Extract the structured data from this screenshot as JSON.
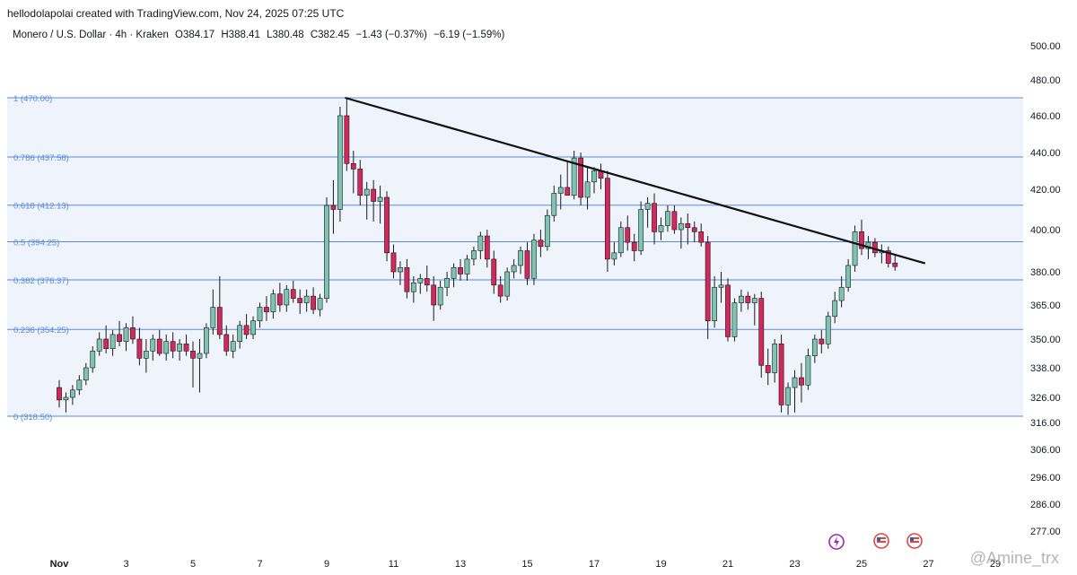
{
  "header": {
    "attribution": "hellodolapolai created with TradingView.com, Nov 24, 2025 07:25 UTC"
  },
  "symbol": {
    "name": "Monero / U.S. Dollar · 4h · Kraken",
    "open": "O384.17",
    "high": "H388.41",
    "low": "L380.48",
    "close": "C382.45",
    "change": "−1.43 (−0.37%)",
    "change2": "−6.19 (−1.59%)"
  },
  "watermark": "@Amine_trx",
  "colors": {
    "up": "#7fc3b3",
    "down": "#d2285a",
    "fib": "#5b8bd6",
    "band": "#eef3fc",
    "trendline": "#111111"
  },
  "chart_data": {
    "type": "candlestick",
    "y_ticks": [
      "500.00",
      "480.00",
      "460.00",
      "440.00",
      "420.00",
      "400.00",
      "380.00",
      "365.00",
      "350.00",
      "338.00",
      "326.00",
      "316.00",
      "306.00",
      "296.00",
      "286.00",
      "277.00"
    ],
    "x_ticks": [
      "Nov",
      "3",
      "5",
      "7",
      "9",
      "11",
      "13",
      "15",
      "17",
      "19",
      "21",
      "23",
      "25",
      "27",
      "29"
    ],
    "fib_levels": [
      {
        "ratio": "1",
        "price": 470.0,
        "label": "1 (470.00)"
      },
      {
        "ratio": "0.786",
        "price": 437.58,
        "label": "0.786 (437.58)"
      },
      {
        "ratio": "0.618",
        "price": 412.13,
        "label": "0.618 (412.13)"
      },
      {
        "ratio": "0.5",
        "price": 394.25,
        "label": "0.5 (394.25)"
      },
      {
        "ratio": "0.382",
        "price": 376.37,
        "label": "0.382 (376.37)"
      },
      {
        "ratio": "0.236",
        "price": 354.25,
        "label": "0.236 (354.25)"
      },
      {
        "ratio": "0",
        "price": 318.5,
        "label": "0 (318.50)"
      }
    ],
    "trendline": [
      {
        "day": 9.55,
        "price": 470.0
      },
      {
        "day": 26.9,
        "price": 384.0
      }
    ],
    "candles": [
      {
        "d": 1.0,
        "o": 330,
        "h": 333,
        "l": 322,
        "c": 325
      },
      {
        "d": 1.2,
        "o": 325,
        "h": 328,
        "l": 320,
        "c": 326
      },
      {
        "d": 1.4,
        "o": 326,
        "h": 331,
        "l": 323,
        "c": 329
      },
      {
        "d": 1.6,
        "o": 329,
        "h": 335,
        "l": 327,
        "c": 333
      },
      {
        "d": 1.8,
        "o": 333,
        "h": 340,
        "l": 331,
        "c": 338
      },
      {
        "d": 2.0,
        "o": 338,
        "h": 347,
        "l": 336,
        "c": 345
      },
      {
        "d": 2.2,
        "o": 345,
        "h": 353,
        "l": 343,
        "c": 350
      },
      {
        "d": 2.4,
        "o": 350,
        "h": 356,
        "l": 344,
        "c": 346
      },
      {
        "d": 2.6,
        "o": 346,
        "h": 354,
        "l": 343,
        "c": 352
      },
      {
        "d": 2.8,
        "o": 352,
        "h": 358,
        "l": 347,
        "c": 349
      },
      {
        "d": 3.0,
        "o": 349,
        "h": 357,
        "l": 345,
        "c": 355
      },
      {
        "d": 3.2,
        "o": 355,
        "h": 360,
        "l": 348,
        "c": 350
      },
      {
        "d": 3.4,
        "o": 350,
        "h": 355,
        "l": 339,
        "c": 342
      },
      {
        "d": 3.6,
        "o": 342,
        "h": 350,
        "l": 336,
        "c": 345
      },
      {
        "d": 3.8,
        "o": 345,
        "h": 352,
        "l": 341,
        "c": 350
      },
      {
        "d": 4.0,
        "o": 350,
        "h": 354,
        "l": 343,
        "c": 344
      },
      {
        "d": 4.2,
        "o": 344,
        "h": 352,
        "l": 341,
        "c": 349
      },
      {
        "d": 4.4,
        "o": 349,
        "h": 353,
        "l": 342,
        "c": 345
      },
      {
        "d": 4.6,
        "o": 345,
        "h": 350,
        "l": 341,
        "c": 348
      },
      {
        "d": 4.8,
        "o": 348,
        "h": 352,
        "l": 343,
        "c": 345
      },
      {
        "d": 5.0,
        "o": 345,
        "h": 349,
        "l": 330,
        "c": 342
      },
      {
        "d": 5.2,
        "o": 342,
        "h": 350,
        "l": 328,
        "c": 344
      },
      {
        "d": 5.4,
        "o": 344,
        "h": 357,
        "l": 342,
        "c": 355
      },
      {
        "d": 5.6,
        "o": 355,
        "h": 372,
        "l": 352,
        "c": 364
      },
      {
        "d": 5.8,
        "o": 364,
        "h": 378,
        "l": 350,
        "c": 352
      },
      {
        "d": 6.0,
        "o": 352,
        "h": 356,
        "l": 343,
        "c": 345
      },
      {
        "d": 6.2,
        "o": 345,
        "h": 352,
        "l": 342,
        "c": 349
      },
      {
        "d": 6.4,
        "o": 349,
        "h": 358,
        "l": 346,
        "c": 356
      },
      {
        "d": 6.6,
        "o": 356,
        "h": 361,
        "l": 350,
        "c": 352
      },
      {
        "d": 6.8,
        "o": 352,
        "h": 360,
        "l": 350,
        "c": 358
      },
      {
        "d": 7.0,
        "o": 358,
        "h": 366,
        "l": 355,
        "c": 364
      },
      {
        "d": 7.2,
        "o": 364,
        "h": 369,
        "l": 358,
        "c": 362
      },
      {
        "d": 7.4,
        "o": 362,
        "h": 372,
        "l": 359,
        "c": 370
      },
      {
        "d": 7.6,
        "o": 370,
        "h": 375,
        "l": 362,
        "c": 365
      },
      {
        "d": 7.8,
        "o": 365,
        "h": 374,
        "l": 362,
        "c": 372
      },
      {
        "d": 8.0,
        "o": 372,
        "h": 376,
        "l": 366,
        "c": 368
      },
      {
        "d": 8.2,
        "o": 368,
        "h": 372,
        "l": 361,
        "c": 366
      },
      {
        "d": 8.4,
        "o": 366,
        "h": 372,
        "l": 362,
        "c": 369
      },
      {
        "d": 8.6,
        "o": 369,
        "h": 373,
        "l": 361,
        "c": 363
      },
      {
        "d": 8.8,
        "o": 363,
        "h": 370,
        "l": 360,
        "c": 368
      },
      {
        "d": 9.0,
        "o": 368,
        "h": 416,
        "l": 366,
        "c": 412
      },
      {
        "d": 9.2,
        "o": 412,
        "h": 425,
        "l": 398,
        "c": 410
      },
      {
        "d": 9.4,
        "o": 410,
        "h": 465,
        "l": 404,
        "c": 460
      },
      {
        "d": 9.6,
        "o": 460,
        "h": 470,
        "l": 430,
        "c": 434
      },
      {
        "d": 9.8,
        "o": 434,
        "h": 441,
        "l": 418,
        "c": 431
      },
      {
        "d": 10.0,
        "o": 431,
        "h": 436,
        "l": 412,
        "c": 417
      },
      {
        "d": 10.2,
        "o": 417,
        "h": 424,
        "l": 405,
        "c": 420
      },
      {
        "d": 10.4,
        "o": 420,
        "h": 425,
        "l": 404,
        "c": 414
      },
      {
        "d": 10.6,
        "o": 414,
        "h": 422,
        "l": 403,
        "c": 416
      },
      {
        "d": 10.8,
        "o": 416,
        "h": 419,
        "l": 385,
        "c": 389
      },
      {
        "d": 11.0,
        "o": 389,
        "h": 393,
        "l": 377,
        "c": 380
      },
      {
        "d": 11.2,
        "o": 380,
        "h": 385,
        "l": 374,
        "c": 382
      },
      {
        "d": 11.4,
        "o": 382,
        "h": 386,
        "l": 368,
        "c": 371
      },
      {
        "d": 11.6,
        "o": 371,
        "h": 378,
        "l": 366,
        "c": 375
      },
      {
        "d": 11.8,
        "o": 375,
        "h": 379,
        "l": 370,
        "c": 377
      },
      {
        "d": 12.0,
        "o": 377,
        "h": 383,
        "l": 371,
        "c": 374
      },
      {
        "d": 12.2,
        "o": 374,
        "h": 378,
        "l": 358,
        "c": 365
      },
      {
        "d": 12.4,
        "o": 365,
        "h": 376,
        "l": 363,
        "c": 373
      },
      {
        "d": 12.6,
        "o": 373,
        "h": 380,
        "l": 369,
        "c": 377
      },
      {
        "d": 12.8,
        "o": 377,
        "h": 384,
        "l": 373,
        "c": 382
      },
      {
        "d": 13.0,
        "o": 382,
        "h": 386,
        "l": 376,
        "c": 379
      },
      {
        "d": 13.2,
        "o": 379,
        "h": 388,
        "l": 376,
        "c": 386
      },
      {
        "d": 13.4,
        "o": 386,
        "h": 392,
        "l": 383,
        "c": 390
      },
      {
        "d": 13.6,
        "o": 390,
        "h": 399,
        "l": 386,
        "c": 397
      },
      {
        "d": 13.8,
        "o": 397,
        "h": 400,
        "l": 382,
        "c": 386
      },
      {
        "d": 14.0,
        "o": 386,
        "h": 390,
        "l": 370,
        "c": 374
      },
      {
        "d": 14.2,
        "o": 374,
        "h": 378,
        "l": 366,
        "c": 369
      },
      {
        "d": 14.4,
        "o": 369,
        "h": 382,
        "l": 367,
        "c": 380
      },
      {
        "d": 14.6,
        "o": 380,
        "h": 386,
        "l": 377,
        "c": 383
      },
      {
        "d": 14.8,
        "o": 383,
        "h": 392,
        "l": 379,
        "c": 390
      },
      {
        "d": 15.0,
        "o": 390,
        "h": 394,
        "l": 374,
        "c": 377
      },
      {
        "d": 15.2,
        "o": 377,
        "h": 398,
        "l": 374,
        "c": 395
      },
      {
        "d": 15.4,
        "o": 395,
        "h": 400,
        "l": 387,
        "c": 392
      },
      {
        "d": 15.6,
        "o": 392,
        "h": 410,
        "l": 390,
        "c": 407
      },
      {
        "d": 15.8,
        "o": 407,
        "h": 422,
        "l": 404,
        "c": 418
      },
      {
        "d": 16.0,
        "o": 418,
        "h": 428,
        "l": 410,
        "c": 421
      },
      {
        "d": 16.2,
        "o": 421,
        "h": 435,
        "l": 418,
        "c": 417
      },
      {
        "d": 16.4,
        "o": 417,
        "h": 441,
        "l": 415,
        "c": 437
      },
      {
        "d": 16.6,
        "o": 437,
        "h": 440,
        "l": 412,
        "c": 416
      },
      {
        "d": 16.8,
        "o": 416,
        "h": 432,
        "l": 410,
        "c": 424
      },
      {
        "d": 17.0,
        "o": 424,
        "h": 432,
        "l": 418,
        "c": 430
      },
      {
        "d": 17.2,
        "o": 430,
        "h": 434,
        "l": 420,
        "c": 426
      },
      {
        "d": 17.4,
        "o": 426,
        "h": 430,
        "l": 380,
        "c": 386
      },
      {
        "d": 17.6,
        "o": 386,
        "h": 394,
        "l": 383,
        "c": 389
      },
      {
        "d": 17.8,
        "o": 389,
        "h": 404,
        "l": 387,
        "c": 401
      },
      {
        "d": 18.0,
        "o": 401,
        "h": 407,
        "l": 390,
        "c": 394
      },
      {
        "d": 18.2,
        "o": 394,
        "h": 398,
        "l": 385,
        "c": 390
      },
      {
        "d": 18.4,
        "o": 390,
        "h": 414,
        "l": 388,
        "c": 410
      },
      {
        "d": 18.6,
        "o": 410,
        "h": 416,
        "l": 401,
        "c": 413
      },
      {
        "d": 18.8,
        "o": 413,
        "h": 418,
        "l": 393,
        "c": 399
      },
      {
        "d": 19.0,
        "o": 399,
        "h": 406,
        "l": 395,
        "c": 402
      },
      {
        "d": 19.2,
        "o": 402,
        "h": 412,
        "l": 399,
        "c": 409
      },
      {
        "d": 19.4,
        "o": 409,
        "h": 412,
        "l": 398,
        "c": 400
      },
      {
        "d": 19.6,
        "o": 400,
        "h": 406,
        "l": 391,
        "c": 403
      },
      {
        "d": 19.8,
        "o": 403,
        "h": 408,
        "l": 393,
        "c": 401
      },
      {
        "d": 20.0,
        "o": 401,
        "h": 404,
        "l": 394,
        "c": 399
      },
      {
        "d": 20.2,
        "o": 399,
        "h": 403,
        "l": 392,
        "c": 394
      },
      {
        "d": 20.4,
        "o": 394,
        "h": 397,
        "l": 350,
        "c": 358
      },
      {
        "d": 20.6,
        "o": 358,
        "h": 378,
        "l": 355,
        "c": 373
      },
      {
        "d": 20.8,
        "o": 373,
        "h": 380,
        "l": 366,
        "c": 374
      },
      {
        "d": 21.0,
        "o": 374,
        "h": 377,
        "l": 349,
        "c": 351
      },
      {
        "d": 21.2,
        "o": 351,
        "h": 368,
        "l": 349,
        "c": 366
      },
      {
        "d": 21.4,
        "o": 366,
        "h": 372,
        "l": 362,
        "c": 369
      },
      {
        "d": 21.6,
        "o": 369,
        "h": 371,
        "l": 363,
        "c": 366
      },
      {
        "d": 21.8,
        "o": 366,
        "h": 370,
        "l": 356,
        "c": 368
      },
      {
        "d": 22.0,
        "o": 368,
        "h": 371,
        "l": 334,
        "c": 339
      },
      {
        "d": 22.2,
        "o": 339,
        "h": 346,
        "l": 331,
        "c": 336
      },
      {
        "d": 22.4,
        "o": 336,
        "h": 350,
        "l": 332,
        "c": 348
      },
      {
        "d": 22.6,
        "o": 348,
        "h": 352,
        "l": 320,
        "c": 323
      },
      {
        "d": 22.8,
        "o": 323,
        "h": 332,
        "l": 319,
        "c": 330
      },
      {
        "d": 23.0,
        "o": 330,
        "h": 337,
        "l": 320,
        "c": 334
      },
      {
        "d": 23.2,
        "o": 334,
        "h": 340,
        "l": 324,
        "c": 331
      },
      {
        "d": 23.4,
        "o": 331,
        "h": 346,
        "l": 329,
        "c": 343
      },
      {
        "d": 23.6,
        "o": 343,
        "h": 352,
        "l": 340,
        "c": 350
      },
      {
        "d": 23.8,
        "o": 350,
        "h": 354,
        "l": 344,
        "c": 348
      },
      {
        "d": 24.0,
        "o": 348,
        "h": 362,
        "l": 346,
        "c": 360
      },
      {
        "d": 24.2,
        "o": 360,
        "h": 371,
        "l": 357,
        "c": 367
      },
      {
        "d": 24.4,
        "o": 367,
        "h": 378,
        "l": 364,
        "c": 373
      },
      {
        "d": 24.6,
        "o": 373,
        "h": 386,
        "l": 371,
        "c": 383
      },
      {
        "d": 24.8,
        "o": 383,
        "h": 402,
        "l": 380,
        "c": 399
      },
      {
        "d": 25.0,
        "o": 399,
        "h": 405,
        "l": 388,
        "c": 391
      },
      {
        "d": 25.2,
        "o": 391,
        "h": 397,
        "l": 386,
        "c": 394
      },
      {
        "d": 25.4,
        "o": 394,
        "h": 396,
        "l": 387,
        "c": 389
      },
      {
        "d": 25.6,
        "o": 389,
        "h": 393,
        "l": 384,
        "c": 390
      },
      {
        "d": 25.8,
        "o": 390,
        "h": 392,
        "l": 382,
        "c": 384
      },
      {
        "d": 26.0,
        "o": 384.17,
        "h": 388.41,
        "l": 380.48,
        "c": 382.45
      }
    ]
  }
}
